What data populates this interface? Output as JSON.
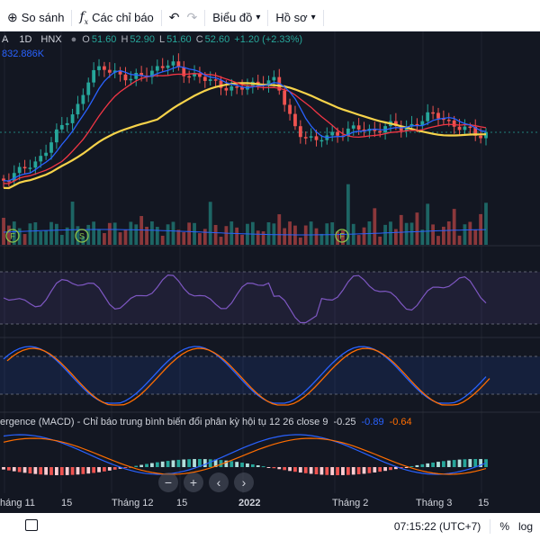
{
  "toolbar": {
    "compare_label": "So sánh",
    "indicators_label": "Các chỉ báo",
    "chart_type_label": "Biểu đồ",
    "profile_label": "Hồ sơ"
  },
  "legend": {
    "symbol_tail": "A",
    "interval": "1D",
    "exchange": "HNX",
    "open_key": "O",
    "open": "51.60",
    "high_key": "H",
    "high": "52.90",
    "low_key": "L",
    "low": "51.60",
    "close_key": "C",
    "close": "52.60",
    "change": "+1.20 (+2.33%)",
    "volume": "832.886K"
  },
  "macd_legend": {
    "title": "ergence (MACD) - Chỉ báo trung bình biến đổi phân kỳ hội tụ 12 26 close 9",
    "v1": "-0.25",
    "v2": "-0.89",
    "v3": "-0.64"
  },
  "xaxis": {
    "labels": [
      "háng 11",
      "15",
      "Tháng 12",
      "15",
      "2022",
      "Tháng 2",
      "Tháng 3",
      "15"
    ]
  },
  "markers": [
    "F",
    "S",
    "F"
  ],
  "nav": {
    "minus": "−",
    "plus": "+",
    "prev": "‹",
    "next": "›"
  },
  "status": {
    "time": "07:15:22 (UTC+7)",
    "percent": "%",
    "log": "log"
  },
  "colors": {
    "background": "#131722",
    "up": "#26a69a",
    "down": "#ef5350",
    "ma_fast": "#2962ff",
    "ma_mid": "#f23645",
    "ma_slow": "#f7d34a",
    "rsi": "#7e57c2",
    "stoch_k": "#2962ff",
    "stoch_d": "#ff6d00"
  },
  "icons": [
    "compare-icon",
    "indicators-icon",
    "undo-icon",
    "redo-icon",
    "chevron-down-icon",
    "chevron-down-icon",
    "calendar-icon"
  ]
}
